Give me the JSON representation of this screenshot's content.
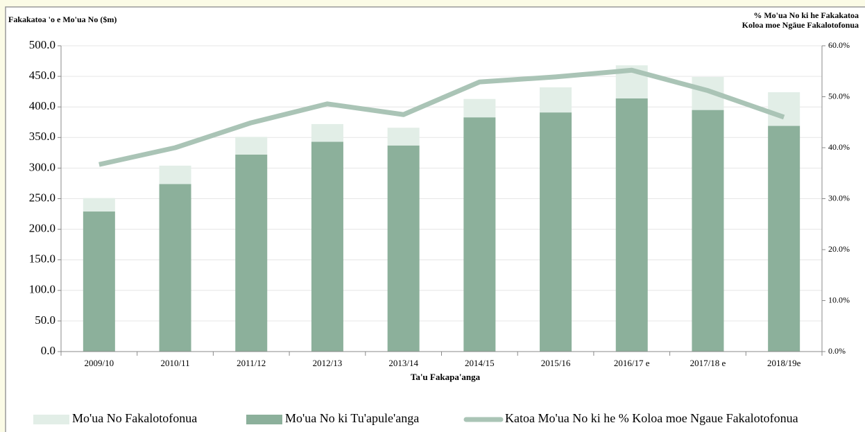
{
  "chart_data": {
    "type": "bar-line",
    "title": "Fakakatoa 'o e Mo'ua No ($m)",
    "y2_title": [
      "% Mo'ua No ki he Fakakatoa",
      "Koloa moe Ngāue Fakalotofonua"
    ],
    "x_label": "Ta'u Fakapa'anga",
    "categories": [
      "2009/10",
      "2010/11",
      "2011/12",
      "2012/13",
      "2013/14",
      "2014/15",
      "2015/16",
      "2016/17 e",
      "2017/18 e",
      "2018/19e"
    ],
    "series": [
      {
        "name": "Mo'ua No Fakalotofonua",
        "type": "bar",
        "color": "#e2eee7",
        "values": [
          22,
          30,
          29,
          29,
          29,
          30,
          41,
          54,
          54,
          55
        ]
      },
      {
        "name": "Mo'ua No ki Tu'apule'anga",
        "type": "bar",
        "color": "#8cb09b",
        "values": [
          229,
          274,
          322,
          343,
          337,
          383,
          391,
          414,
          395,
          369
        ]
      },
      {
        "name": "Katoa Mo'ua No ki he % Koloa moe Ngaue Fakalotofonua",
        "type": "line",
        "axis": "y2",
        "color": "#aac4b6",
        "values": [
          36.7,
          40.0,
          44.9,
          48.6,
          46.5,
          52.9,
          53.9,
          55.2,
          51.2,
          46.0
        ]
      }
    ],
    "ylim": [
      0,
      500
    ],
    "yticks": [
      {
        "value": 0,
        "label": "0.0"
      },
      {
        "value": 50,
        "label": "50.0"
      },
      {
        "value": 100,
        "label": "100.0"
      },
      {
        "value": 150,
        "label": "150.0"
      },
      {
        "value": 200,
        "label": "200.0"
      },
      {
        "value": 250,
        "label": "250.0"
      },
      {
        "value": 300,
        "label": "300.0"
      },
      {
        "value": 350,
        "label": "350.0"
      },
      {
        "value": 400,
        "label": "400.0"
      },
      {
        "value": 450,
        "label": "450.0"
      },
      {
        "value": 500,
        "label": "500.0"
      }
    ],
    "y2lim": [
      0,
      60
    ],
    "y2ticks": [
      {
        "value": 0,
        "label": "0.0%"
      },
      {
        "value": 10,
        "label": "10.0%"
      },
      {
        "value": 20,
        "label": "20.0%"
      },
      {
        "value": 30,
        "label": "30.0%"
      },
      {
        "value": 40,
        "label": "40.0%"
      },
      {
        "value": 50,
        "label": "50.0%"
      },
      {
        "value": 60,
        "label": "60.0%"
      }
    ],
    "grid": true,
    "legend": "bottom"
  }
}
